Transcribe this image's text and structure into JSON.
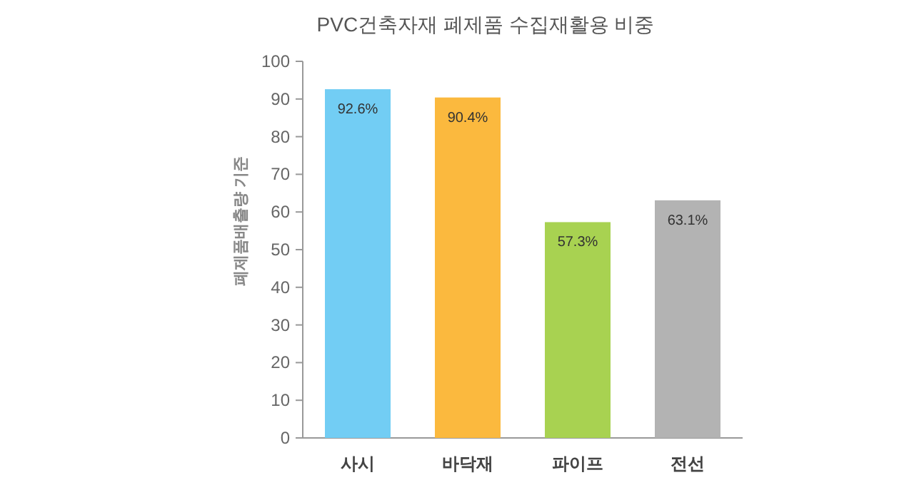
{
  "chart_data": {
    "type": "bar",
    "title": "PVC건축자재 폐제품 수집재활용 비중",
    "ylabel": "폐제품배출량 기준",
    "categories": [
      "사시",
      "바닥재",
      "파이프",
      "전선"
    ],
    "values": [
      92.6,
      90.4,
      57.3,
      63.1
    ],
    "colors": [
      "#72cdf4",
      "#fbb93e",
      "#a8d251",
      "#b3b3b3"
    ],
    "value_labels": [
      "92.6%",
      "90.4%",
      "57.3%",
      "63.1%"
    ],
    "ylim": [
      0,
      100
    ],
    "yticks": [
      0,
      10,
      20,
      30,
      40,
      50,
      60,
      70,
      80,
      90,
      100
    ],
    "grid": false
  }
}
